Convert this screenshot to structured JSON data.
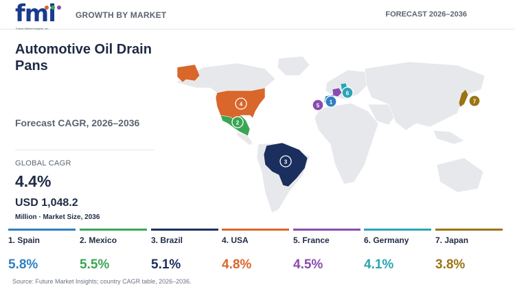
{
  "brand": {
    "logo_text": "fmi",
    "logo_tagline": "Future Market Insights, Inc.",
    "colors": {
      "primary": "#1a3a8c"
    }
  },
  "header": {
    "section_label": "GROWTH BY MARKET",
    "forecast_label": "FORECAST 2026–2036"
  },
  "panel": {
    "title": "Automotive Oil Drain Pans",
    "subtitle": "Forecast CAGR, 2026–2036",
    "global_cagr_label": "GLOBAL CAGR",
    "global_cagr_value": "4.4%",
    "market_size_value": "USD 1,048.2",
    "market_size_label": "Million · Market Size, 2036"
  },
  "countries": [
    {
      "rank": "1",
      "label": "1. Spain",
      "cagr": "5.8%",
      "color": "#2f7fc1"
    },
    {
      "rank": "2",
      "label": "2. Mexico",
      "cagr": "5.5%",
      "color": "#3aa655"
    },
    {
      "rank": "3",
      "label": "3. Brazil",
      "cagr": "5.1%",
      "color": "#1b2f5e"
    },
    {
      "rank": "4",
      "label": "4. USA",
      "cagr": "4.8%",
      "color": "#d9662b"
    },
    {
      "rank": "5",
      "label": "5. France",
      "cagr": "4.5%",
      "color": "#8a4bad"
    },
    {
      "rank": "6",
      "label": "6. Germany",
      "cagr": "4.1%",
      "color": "#2aa5b5"
    },
    {
      "rank": "7",
      "label": "7. Japan",
      "cagr": "3.8%",
      "color": "#9a7414"
    }
  ],
  "source": "Source: Future Market Insights; country CAGR table, 2026–2036."
}
